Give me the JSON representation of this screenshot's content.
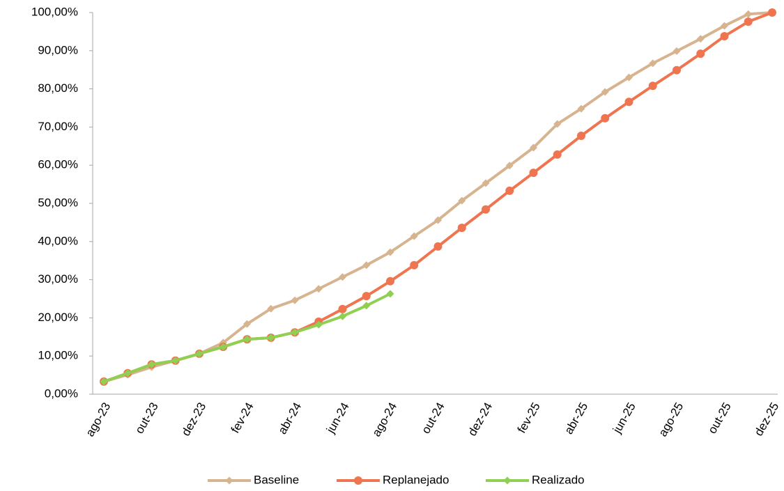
{
  "chart_data": {
    "type": "line",
    "categories": [
      "ago-23",
      null,
      "out-23",
      null,
      "dez-23",
      null,
      "fev-24",
      null,
      "abr-24",
      null,
      "jun-24",
      null,
      "ago-24",
      null,
      "out-24",
      null,
      "dez-24",
      null,
      "fev-25",
      null,
      "abr-25",
      null,
      "jun-25",
      null,
      "ago-25",
      null,
      "out-25",
      null,
      "dez-25"
    ],
    "series": [
      {
        "name": "Baseline",
        "color": "#d6b48f",
        "marker": "diamond",
        "values": [
          3.3,
          5.1,
          7.1,
          8.8,
          10.6,
          13.5,
          18.4,
          22.4,
          24.6,
          27.6,
          30.7,
          33.8,
          37.2,
          41.4,
          45.6,
          50.7,
          55.3,
          59.9,
          64.6,
          70.8,
          74.8,
          79.2,
          83.0,
          86.7,
          89.9,
          93.1,
          96.5,
          99.6,
          100
        ]
      },
      {
        "name": "Replanejado",
        "color": "#ef7550",
        "marker": "circle",
        "values": [
          3.3,
          5.5,
          7.8,
          8.8,
          10.6,
          12.4,
          14.4,
          14.8,
          16.2,
          19.0,
          22.3,
          25.7,
          29.6,
          33.8,
          38.7,
          43.6,
          48.4,
          53.3,
          58.0,
          62.8,
          67.7,
          72.3,
          76.6,
          80.8,
          84.9,
          89.2,
          93.8,
          97.6,
          100
        ]
      },
      {
        "name": "Realizado",
        "color": "#8fd052",
        "marker": "diamond",
        "values": [
          3.3,
          5.5,
          7.8,
          8.8,
          10.6,
          12.4,
          14.4,
          14.8,
          16.2,
          18.2,
          20.4,
          23.2,
          26.3,
          null,
          null,
          null,
          null,
          null,
          null,
          null,
          null,
          null,
          null,
          null,
          null,
          null,
          null,
          null,
          null
        ]
      }
    ],
    "ylim": [
      0,
      100
    ],
    "yticks": [
      {
        "value": 0,
        "label": "0,00%"
      },
      {
        "value": 10,
        "label": "10,00%"
      },
      {
        "value": 20,
        "label": "20,00%"
      },
      {
        "value": 30,
        "label": "30,00%"
      },
      {
        "value": 40,
        "label": "40,00%"
      },
      {
        "value": 50,
        "label": "50,00%"
      },
      {
        "value": 60,
        "label": "60,00%"
      },
      {
        "value": 70,
        "label": "70,00%"
      },
      {
        "value": 80,
        "label": "80,00%"
      },
      {
        "value": 90,
        "label": "90,00%"
      },
      {
        "value": 100,
        "label": "100,00%"
      }
    ],
    "grid": false,
    "legend": "bottom"
  }
}
